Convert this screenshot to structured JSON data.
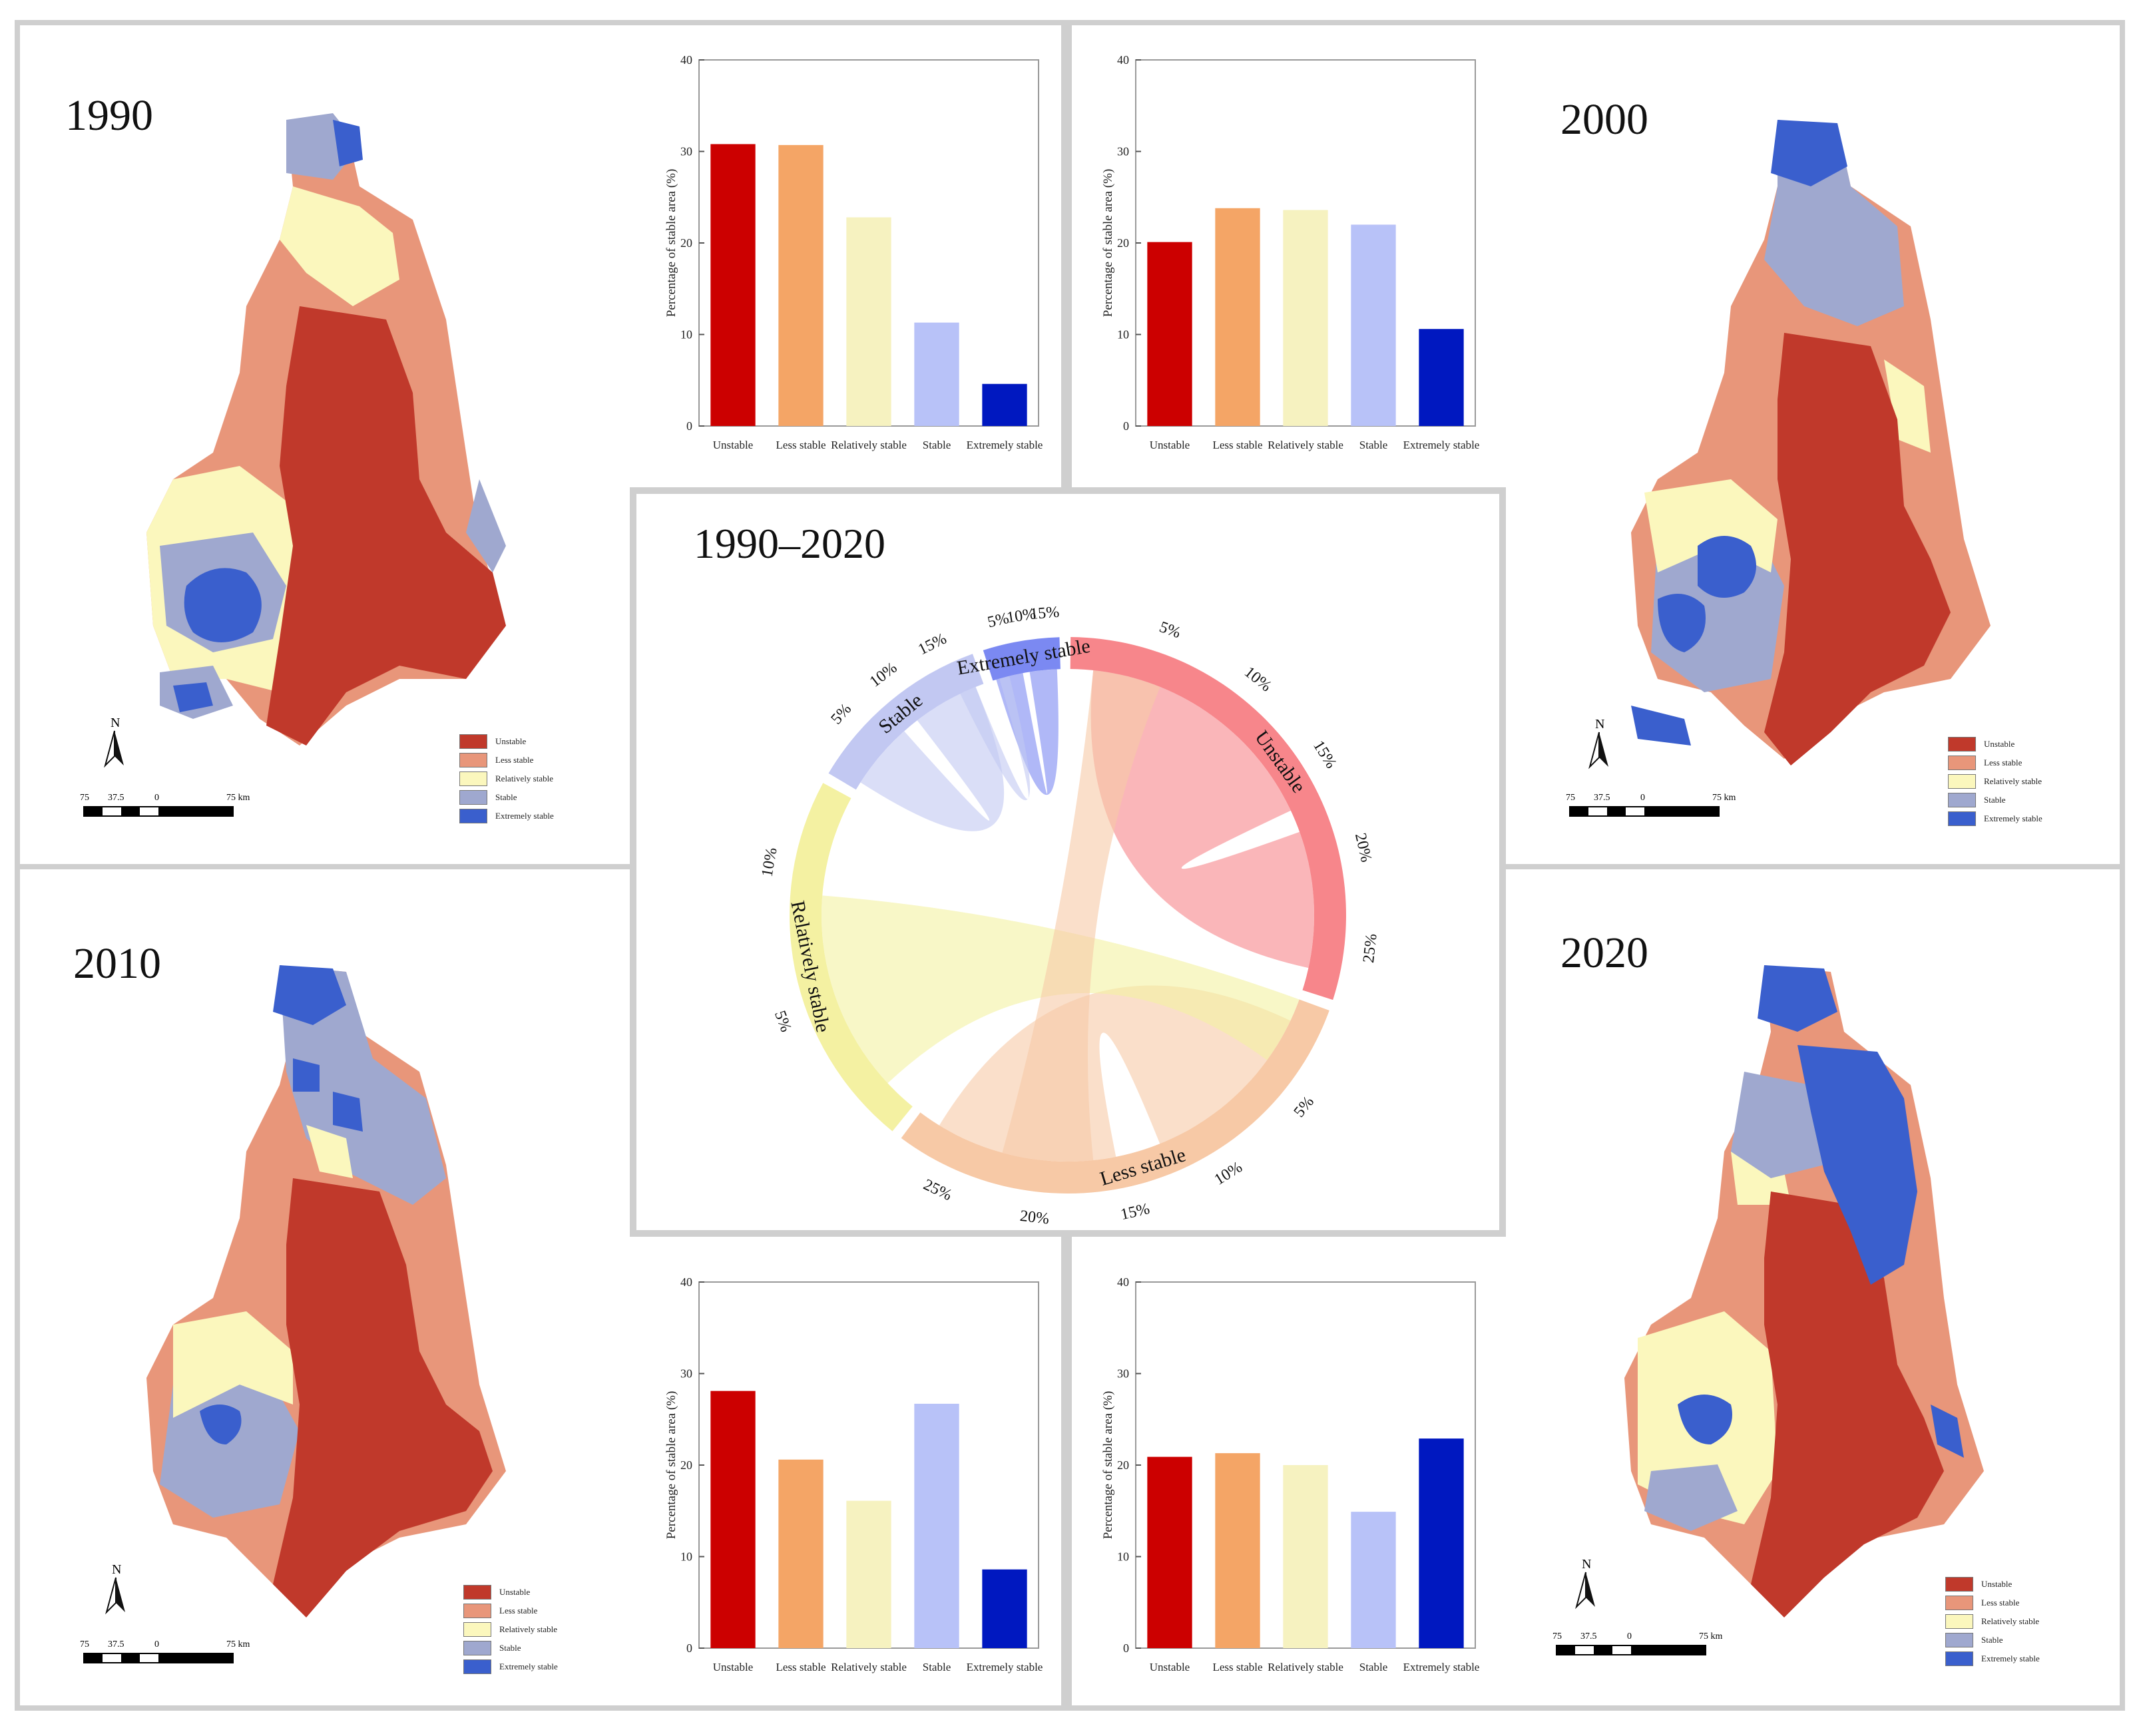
{
  "colors": {
    "unstable": "#c0392b",
    "less_stable": "#e8967a",
    "relatively_stable": "#fbf7bd",
    "stable": "#9fa8cf",
    "extremely_stable": "#3a5fcd",
    "bar_unstable": "#cc0000",
    "bar_less_stable": "#f4a566",
    "bar_relatively_stable": "#f6f2c0",
    "bar_stable": "#b8c2f8",
    "bar_extremely_stable": "#0018c0"
  },
  "legend": {
    "items": [
      "Unstable",
      "Less stable",
      "Relatively stable",
      "Stable",
      "Extremely stable"
    ]
  },
  "scale_bar": {
    "labels": [
      "75",
      "37.5",
      "0",
      "75 km"
    ]
  },
  "north_label": "N",
  "maps": [
    {
      "year": "1990"
    },
    {
      "year": "2000"
    },
    {
      "year": "2010"
    },
    {
      "year": "2020"
    }
  ],
  "center": {
    "title": "1990–2020"
  },
  "chart_data": [
    {
      "type": "bar",
      "title": "1990",
      "categories": [
        "Unstable",
        "Less stable",
        "Relatively stable",
        "Stable",
        "Extremely stable"
      ],
      "values": [
        30.8,
        30.7,
        22.8,
        11.3,
        4.6
      ],
      "xlabel": "",
      "ylabel": "Percentage of stable area (%)",
      "ylim": [
        0,
        40
      ],
      "yticks": [
        "0",
        "10",
        "20",
        "30",
        "40"
      ]
    },
    {
      "type": "bar",
      "title": "2000",
      "categories": [
        "Unstable",
        "Less stable",
        "Relatively stable",
        "Stable",
        "Extremely stable"
      ],
      "values": [
        20.1,
        23.8,
        23.6,
        22.0,
        10.6
      ],
      "xlabel": "",
      "ylabel": "Percentage of stable area (%)",
      "ylim": [
        0,
        40
      ],
      "yticks": [
        "0",
        "10",
        "20",
        "30",
        "40"
      ]
    },
    {
      "type": "bar",
      "title": "2010",
      "categories": [
        "Unstable",
        "Less stable",
        "Relatively stable",
        "Stable",
        "Extremely stable"
      ],
      "values": [
        28.1,
        20.6,
        16.1,
        26.7,
        8.6
      ],
      "xlabel": "",
      "ylabel": "Percentage of stable area (%)",
      "ylim": [
        0,
        40
      ],
      "yticks": [
        "0",
        "10",
        "20",
        "30",
        "40"
      ]
    },
    {
      "type": "bar",
      "title": "2020",
      "categories": [
        "Unstable",
        "Less stable",
        "Relatively stable",
        "Stable",
        "Extremely stable"
      ],
      "values": [
        20.9,
        21.3,
        20.0,
        14.9,
        22.9
      ],
      "xlabel": "",
      "ylabel": "Percentage of stable area (%)",
      "ylim": [
        0,
        40
      ],
      "yticks": [
        "0",
        "10",
        "20",
        "30",
        "40"
      ]
    },
    {
      "type": "chord",
      "title": "1990–2020",
      "categories": [
        "Unstable",
        "Less stable",
        "Relatively stable",
        "Stable",
        "Extremely stable"
      ],
      "segment_percents": [
        30.8,
        30.7,
        22.8,
        11.3,
        4.6
      ],
      "ticks": {
        "Unstable": [
          "5%",
          "10%",
          "15%",
          "20%",
          "25%"
        ],
        "Less stable": [
          "5%",
          "10%",
          "15%",
          "20%",
          "25%"
        ],
        "Relatively stable": [
          "5%",
          "10%"
        ],
        "Stable": [
          "5%",
          "10%",
          "15%"
        ],
        "Extremely stable": [
          "5%",
          "10%",
          "15%"
        ]
      }
    }
  ]
}
